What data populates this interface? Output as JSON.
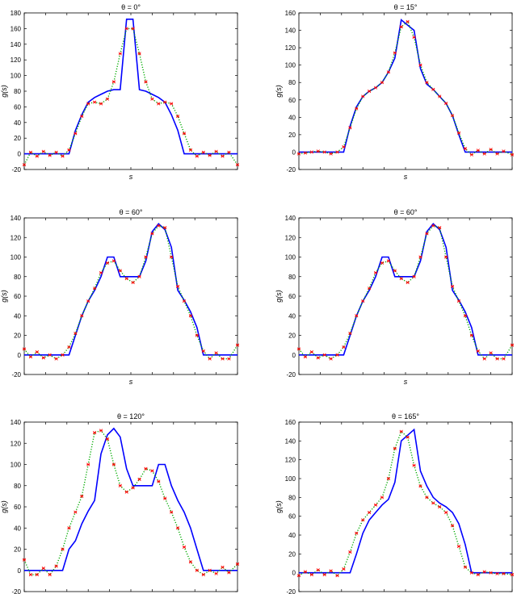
{
  "figure": {
    "colors": {
      "true": "#0000ff",
      "dots": "#00aa00",
      "stars": "#ff0000"
    }
  },
  "chart_data": [
    {
      "type": "line",
      "title": "θ = 0°",
      "xlabel": "s",
      "ylabel": "g(s)",
      "ylim": [
        -20,
        180
      ],
      "yticks": [
        -20,
        0,
        20,
        40,
        60,
        80,
        100,
        120,
        140,
        160,
        180
      ],
      "ytick_labels": [
        "-20",
        "0",
        "20",
        "40",
        "60",
        "80",
        "100",
        "120",
        "140",
        "160",
        "180"
      ],
      "xlim": [
        0,
        100
      ],
      "x": [
        0,
        3,
        6,
        9,
        12,
        15,
        18,
        21,
        24,
        27,
        30,
        33,
        36,
        39,
        42,
        45,
        48,
        51,
        54,
        57,
        60,
        63,
        66,
        69,
        72,
        75,
        78,
        81,
        84,
        87,
        90,
        93,
        96,
        100
      ],
      "series": [
        {
          "name": "",
          "values": [
            0,
            0,
            0,
            0,
            0,
            0,
            0,
            0,
            30,
            50,
            66,
            72,
            76,
            80,
            82,
            82,
            172,
            172,
            82,
            80,
            76,
            72,
            66,
            50,
            30,
            0,
            0,
            0,
            0,
            0,
            0,
            0,
            0,
            0
          ]
        },
        {
          "name": "",
          "values": [
            -14,
            2,
            -3,
            3,
            -2,
            2,
            -3,
            5,
            26,
            48,
            64,
            66,
            64,
            70,
            92,
            128,
            160,
            160,
            128,
            92,
            70,
            64,
            66,
            64,
            48,
            26,
            5,
            -3,
            2,
            -2,
            3,
            -3,
            2,
            -14
          ]
        }
      ]
    },
    {
      "type": "line",
      "title": "θ = 15°",
      "xlabel": "s",
      "ylabel": "g(s)",
      "ylim": [
        -20,
        160
      ],
      "yticks": [
        -20,
        0,
        20,
        40,
        60,
        80,
        100,
        120,
        140,
        160
      ],
      "ytick_labels": [
        "-20",
        "0",
        "20",
        "40",
        "60",
        "80",
        "100",
        "120",
        "140",
        "160"
      ],
      "xlim": [
        0,
        100
      ],
      "x": [
        0,
        3,
        6,
        9,
        12,
        15,
        18,
        21,
        24,
        27,
        30,
        33,
        36,
        39,
        42,
        45,
        48,
        51,
        54,
        57,
        60,
        63,
        66,
        69,
        72,
        75,
        78,
        81,
        84,
        87,
        90,
        93,
        96,
        100
      ],
      "series": [
        {
          "name": "",
          "values": [
            0,
            0,
            0,
            0,
            0,
            0,
            0,
            0,
            30,
            52,
            64,
            70,
            74,
            80,
            92,
            108,
            152,
            146,
            140,
            96,
            78,
            72,
            64,
            56,
            42,
            20,
            0,
            0,
            0,
            0,
            0,
            0,
            0,
            0
          ]
        },
        {
          "name": "",
          "values": [
            -2,
            -1,
            0,
            1,
            0,
            -2,
            0,
            6,
            28,
            50,
            64,
            70,
            74,
            80,
            92,
            114,
            144,
            150,
            132,
            100,
            80,
            72,
            64,
            56,
            42,
            22,
            4,
            -3,
            2,
            -2,
            3,
            -2,
            1,
            -3
          ]
        }
      ]
    },
    {
      "type": "line",
      "title": "θ = 60°",
      "xlabel": "s",
      "ylabel": "g(s)",
      "ylim": [
        -20,
        140
      ],
      "yticks": [
        -20,
        0,
        20,
        40,
        60,
        80,
        100,
        120,
        140
      ],
      "ytick_labels": [
        "-20",
        "0",
        "20",
        "40",
        "60",
        "80",
        "100",
        "120",
        "140"
      ],
      "xlim": [
        0,
        100
      ],
      "x": [
        0,
        3,
        6,
        9,
        12,
        15,
        18,
        21,
        24,
        27,
        30,
        33,
        36,
        39,
        42,
        45,
        48,
        51,
        54,
        57,
        60,
        63,
        66,
        69,
        72,
        75,
        78,
        81,
        84,
        87,
        90,
        93,
        96,
        100
      ],
      "series": [
        {
          "name": "",
          "values": [
            0,
            0,
            0,
            0,
            0,
            0,
            0,
            0,
            20,
            40,
            55,
            66,
            80,
            100,
            100,
            80,
            80,
            80,
            80,
            96,
            126,
            134,
            128,
            110,
            66,
            56,
            44,
            28,
            0,
            0,
            0,
            0,
            0,
            0
          ]
        },
        {
          "name": "",
          "values": [
            6,
            -2,
            3,
            -3,
            0,
            -4,
            0,
            8,
            22,
            40,
            55,
            68,
            84,
            94,
            96,
            86,
            78,
            74,
            80,
            100,
            124,
            132,
            130,
            100,
            70,
            55,
            40,
            20,
            4,
            -4,
            2,
            -4,
            -4,
            10
          ]
        }
      ]
    },
    {
      "type": "line",
      "title": "θ = 60°",
      "xlabel": "s",
      "ylabel": "g(s)",
      "ylim": [
        -20,
        140
      ],
      "yticks": [
        -20,
        0,
        20,
        40,
        60,
        80,
        100,
        120,
        140
      ],
      "ytick_labels": [
        "-20",
        "0",
        "20",
        "40",
        "60",
        "80",
        "100",
        "120",
        "140"
      ],
      "xlim": [
        0,
        100
      ],
      "x": [
        0,
        3,
        6,
        9,
        12,
        15,
        18,
        21,
        24,
        27,
        30,
        33,
        36,
        39,
        42,
        45,
        48,
        51,
        54,
        57,
        60,
        63,
        66,
        69,
        72,
        75,
        78,
        81,
        84,
        87,
        90,
        93,
        96,
        100
      ],
      "series": [
        {
          "name": "",
          "values": [
            0,
            0,
            0,
            0,
            0,
            0,
            0,
            0,
            20,
            40,
            55,
            66,
            80,
            100,
            100,
            80,
            80,
            80,
            80,
            96,
            126,
            134,
            128,
            110,
            66,
            56,
            44,
            28,
            0,
            0,
            0,
            0,
            0,
            0
          ]
        },
        {
          "name": "",
          "values": [
            6,
            -2,
            3,
            -3,
            0,
            -4,
            0,
            8,
            22,
            40,
            55,
            68,
            84,
            94,
            96,
            86,
            78,
            74,
            80,
            100,
            124,
            132,
            130,
            100,
            70,
            55,
            40,
            20,
            4,
            -4,
            2,
            -4,
            -4,
            10
          ]
        }
      ]
    },
    {
      "type": "line",
      "title": "θ = 120°",
      "xlabel": "s",
      "ylabel": "g(s)",
      "ylim": [
        -20,
        140
      ],
      "yticks": [
        -20,
        0,
        20,
        40,
        60,
        80,
        100,
        120,
        140
      ],
      "ytick_labels": [
        "-20",
        "0",
        "20",
        "40",
        "60",
        "80",
        "100",
        "120",
        "140"
      ],
      "xlim": [
        0,
        100
      ],
      "x": [
        0,
        3,
        6,
        9,
        12,
        15,
        18,
        21,
        24,
        27,
        30,
        33,
        36,
        39,
        42,
        45,
        48,
        51,
        54,
        57,
        60,
        63,
        66,
        69,
        72,
        75,
        78,
        81,
        84,
        87,
        90,
        93,
        96,
        100
      ],
      "series": [
        {
          "name": "",
          "values": [
            0,
            0,
            0,
            0,
            0,
            0,
            0,
            20,
            28,
            44,
            56,
            66,
            110,
            128,
            134,
            126,
            96,
            80,
            80,
            80,
            80,
            100,
            100,
            80,
            66,
            55,
            40,
            20,
            0,
            0,
            0,
            0,
            0,
            0
          ]
        },
        {
          "name": "",
          "values": [
            10,
            -4,
            -4,
            2,
            -4,
            4,
            20,
            40,
            55,
            70,
            100,
            130,
            132,
            124,
            100,
            80,
            74,
            78,
            86,
            96,
            94,
            84,
            68,
            55,
            40,
            22,
            8,
            0,
            -4,
            0,
            -3,
            3,
            -2,
            6
          ]
        }
      ]
    },
    {
      "type": "line",
      "title": "θ = 165°",
      "xlabel": "s",
      "ylabel": "g(s)",
      "ylim": [
        -20,
        160
      ],
      "yticks": [
        -20,
        0,
        20,
        40,
        60,
        80,
        100,
        120,
        140,
        160
      ],
      "ytick_labels": [
        "-20",
        "0",
        "20",
        "40",
        "60",
        "80",
        "100",
        "120",
        "140",
        "160"
      ],
      "xlim": [
        0,
        100
      ],
      "x": [
        0,
        3,
        6,
        9,
        12,
        15,
        18,
        21,
        24,
        27,
        30,
        33,
        36,
        39,
        42,
        45,
        48,
        51,
        54,
        57,
        60,
        63,
        66,
        69,
        72,
        75,
        78,
        81,
        84,
        87,
        90,
        93,
        96,
        100
      ],
      "series": [
        {
          "name": "",
          "values": [
            0,
            0,
            0,
            0,
            0,
            0,
            0,
            0,
            0,
            20,
            42,
            56,
            64,
            72,
            78,
            96,
            140,
            146,
            152,
            108,
            92,
            80,
            74,
            70,
            64,
            52,
            30,
            0,
            0,
            0,
            0,
            0,
            0,
            0
          ]
        },
        {
          "name": "",
          "values": [
            -3,
            1,
            -2,
            3,
            -2,
            2,
            -3,
            4,
            22,
            42,
            56,
            64,
            72,
            80,
            100,
            132,
            150,
            144,
            114,
            92,
            80,
            74,
            70,
            64,
            50,
            28,
            6,
            0,
            -2,
            1,
            0,
            -1,
            -1,
            -2
          ]
        }
      ]
    }
  ]
}
